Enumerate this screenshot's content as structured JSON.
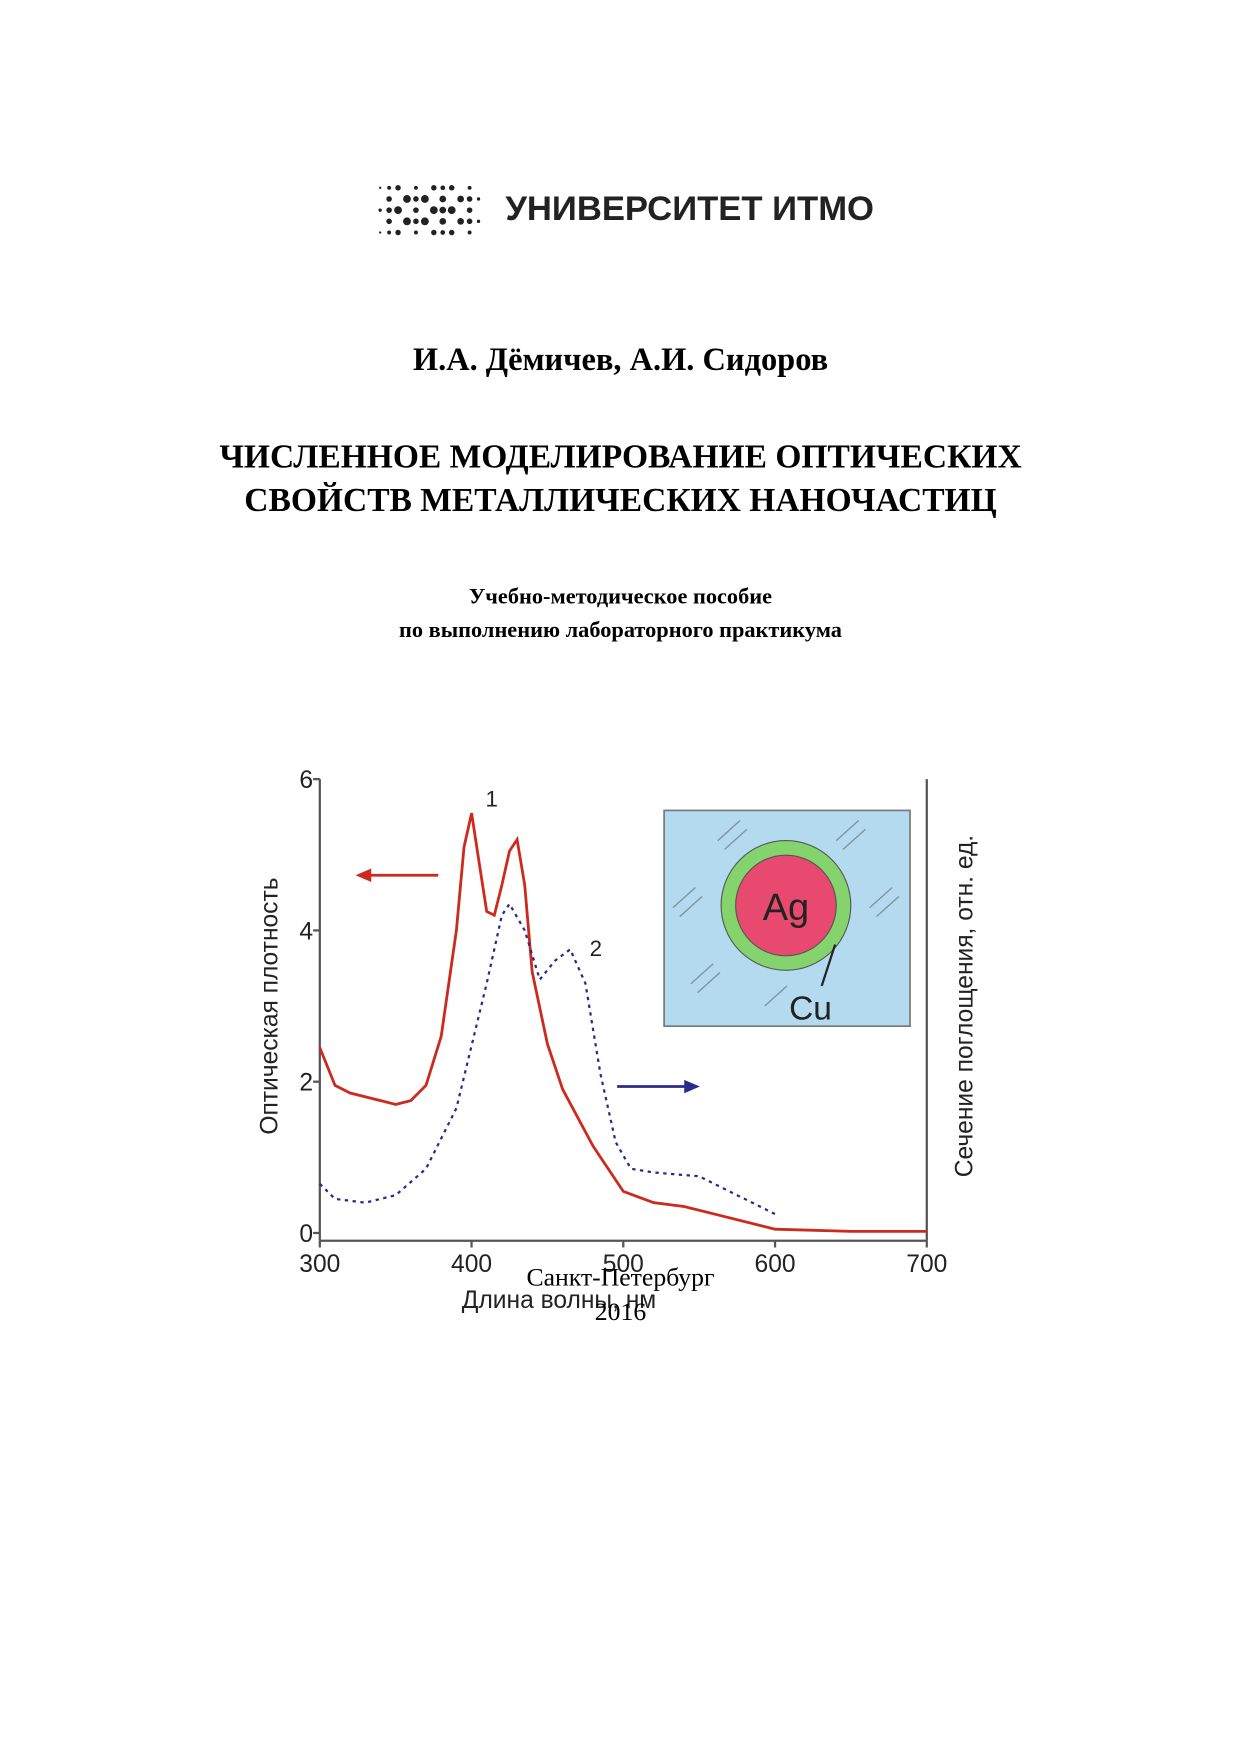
{
  "header": {
    "logo_text": "УНИВЕРСИТЕТ ИТМО"
  },
  "authors": "И.А. Дёмичев, А.И. Сидоров",
  "title": [
    "ЧИСЛЕННОЕ МОДЕЛИРОВАНИЕ ОПТИЧЕСКИХ",
    "СВОЙСТВ МЕТАЛЛИЧЕСКИХ НАНОЧАСТИЦ"
  ],
  "subtitle": [
    "Учебно-методическое пособие",
    "по выполнению лабораторного практикума"
  ],
  "chart_data": {
    "type": "line",
    "xlabel": "Длина волны, нм",
    "ylabel": "Оптическая плотность",
    "y2label": "Сечение поглощения, отн. ед.",
    "xlim": [
      300,
      700
    ],
    "xticks": [
      300,
      400,
      500,
      600,
      700
    ],
    "ylim": [
      0,
      6
    ],
    "yticks": [
      0,
      2,
      4,
      6
    ],
    "annotations": [
      "Ag",
      "Cu"
    ],
    "series": [
      {
        "name": "1",
        "color": "#cc2a1e",
        "style": "solid",
        "x": [
          300,
          310,
          320,
          340,
          350,
          360,
          370,
          380,
          390,
          395,
          400,
          405,
          410,
          415,
          420,
          425,
          430,
          435,
          440,
          450,
          460,
          480,
          500,
          520,
          540,
          560,
          600,
          650,
          700
        ],
        "values": [
          2.45,
          1.95,
          1.85,
          1.75,
          1.7,
          1.75,
          1.95,
          2.6,
          4.0,
          5.1,
          5.55,
          4.9,
          4.25,
          4.2,
          4.6,
          5.05,
          5.2,
          4.6,
          3.45,
          2.5,
          1.9,
          1.15,
          0.55,
          0.4,
          0.35,
          0.25,
          0.05,
          0.02,
          0.02
        ]
      },
      {
        "name": "2",
        "color": "#2a2a8a",
        "style": "dotted",
        "x": [
          300,
          310,
          330,
          350,
          370,
          390,
          410,
          420,
          425,
          435,
          445,
          455,
          465,
          475,
          485,
          495,
          505,
          520,
          550,
          570,
          600
        ],
        "values": [
          0.65,
          0.45,
          0.4,
          0.5,
          0.85,
          1.65,
          3.3,
          4.2,
          4.35,
          4.0,
          3.35,
          3.6,
          3.75,
          3.3,
          2.1,
          1.2,
          0.85,
          0.8,
          0.75,
          0.55,
          0.25
        ]
      }
    ]
  },
  "footer": {
    "city": "Санкт-Петербург",
    "year": "2016"
  }
}
